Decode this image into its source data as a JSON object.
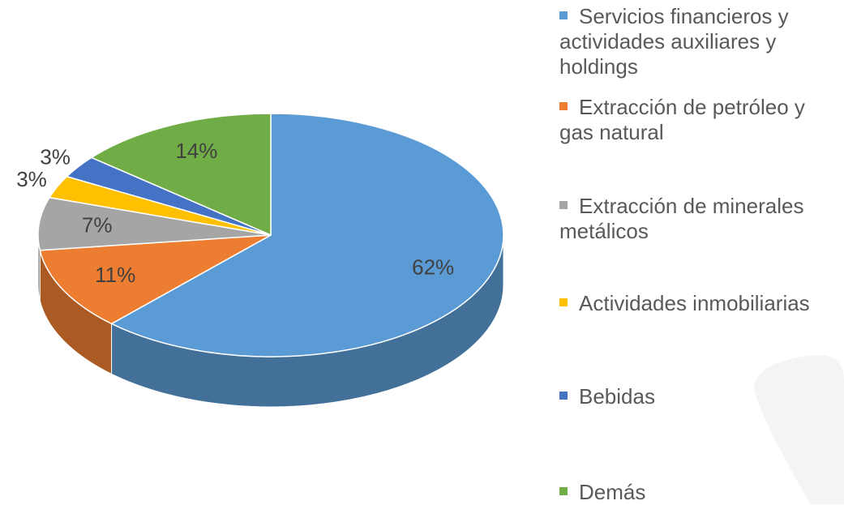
{
  "chart_data": {
    "type": "pie",
    "categories": [
      "Servicios financieros y actividades auxiliares y holdings",
      "Extracción de petróleo y gas natural",
      "Extracción de minerales metálicos",
      "Actividades inmobiliarias",
      "Bebidas",
      "Demás"
    ],
    "values": [
      62,
      11,
      7,
      3,
      3,
      14
    ],
    "value_labels": [
      "62%",
      "11%",
      "7%",
      "3%",
      "3%",
      "14%"
    ],
    "colors": [
      "#5b9bd5",
      "#ed7d31",
      "#a5a5a5",
      "#ffc000",
      "#4472c4",
      "#70ad47"
    ],
    "legend": "right"
  }
}
